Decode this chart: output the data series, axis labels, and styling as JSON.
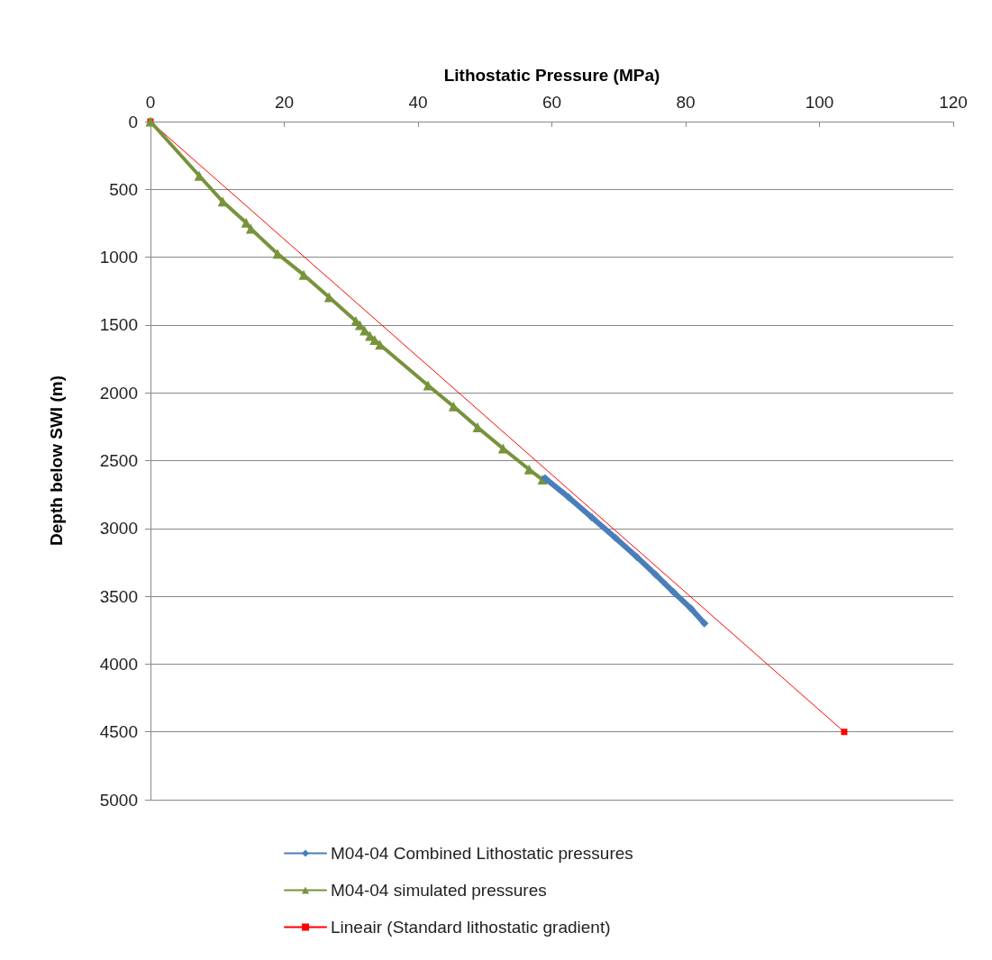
{
  "chart_data": {
    "type": "line",
    "xlabel": "Lithostatic Pressure (MPa)",
    "ylabel": "Depth below SWI (m)",
    "xlim": [
      0,
      120
    ],
    "xticks": [
      0,
      20,
      40,
      60,
      80,
      100,
      120
    ],
    "ylim": [
      5000,
      0
    ],
    "yticks": [
      0,
      500,
      1000,
      1500,
      2000,
      2500,
      3000,
      3500,
      4000,
      4500,
      5000
    ],
    "grid": "y",
    "legend": "bottom",
    "series": [
      {
        "name": "M04-04 Combined Lithostatic pressures",
        "color": "#4a7ebb",
        "marker": "diamond",
        "x": [
          59.0,
          62.5,
          66.0,
          69.5,
          72.7,
          75.5,
          78.2,
          80.8,
          82.8
        ],
        "values": [
          2630,
          2770,
          2920,
          3070,
          3210,
          3340,
          3470,
          3590,
          3700
        ]
      },
      {
        "name": "M04-04 simulated pressures",
        "color": "#77933c",
        "marker": "triangle",
        "x": [
          0,
          7.3,
          10.8,
          14.3,
          15.0,
          19.0,
          22.9,
          26.7,
          30.7,
          31.3,
          32.0,
          32.8,
          33.5,
          34.3,
          41.5,
          45.3,
          48.9,
          52.7,
          56.6,
          58.6
        ],
        "values": [
          0,
          400,
          590,
          745,
          790,
          975,
          1130,
          1295,
          1470,
          1500,
          1540,
          1580,
          1610,
          1645,
          1945,
          2100,
          2255,
          2410,
          2565,
          2640
        ]
      },
      {
        "name": "Lineair (Standard lithostatic gradient)",
        "color": "#ff0000",
        "marker": "square",
        "x": [
          0,
          103.7
        ],
        "values": [
          0,
          4500
        ]
      }
    ]
  }
}
